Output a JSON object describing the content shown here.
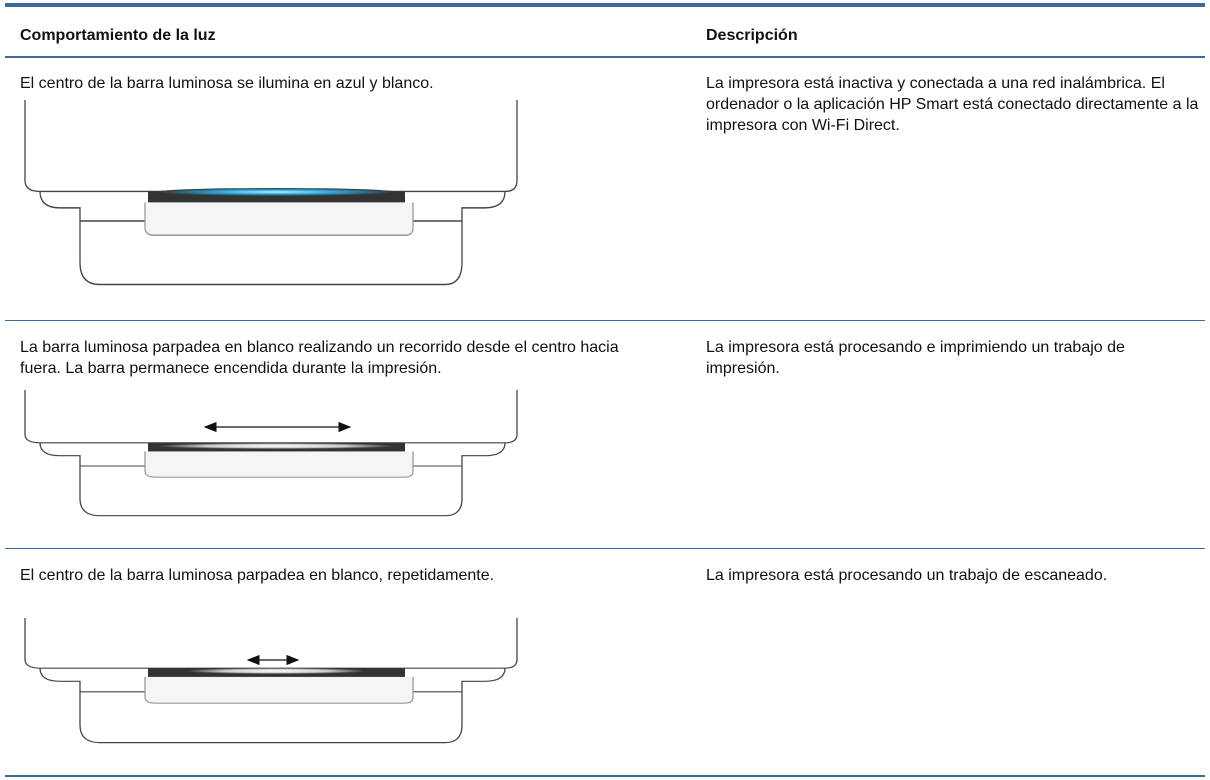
{
  "table": {
    "header": [
      "Comportamiento de la luz",
      "Descripción"
    ],
    "rows": [
      [
        "El centro de la barra luminosa se ilumina en azul y blanco.",
        "La impresora está inactiva y conectada a una red inalámbrica. El ordenador o la aplicación HP Smart está conectado directamente a la impresora con Wi-Fi Direct."
      ],
      [
        "La barra luminosa parpadea en blanco realizando un recorrido desde el centro hacia fuera. La barra permanece encendida durante la impresión.",
        "La impresora está procesando e imprimiendo un trabajo de impresión."
      ],
      [
        "El centro de la barra luminosa parpadea en blanco, repetidamente.",
        "La impresora está procesando un trabajo de escaneado."
      ]
    ]
  }
}
